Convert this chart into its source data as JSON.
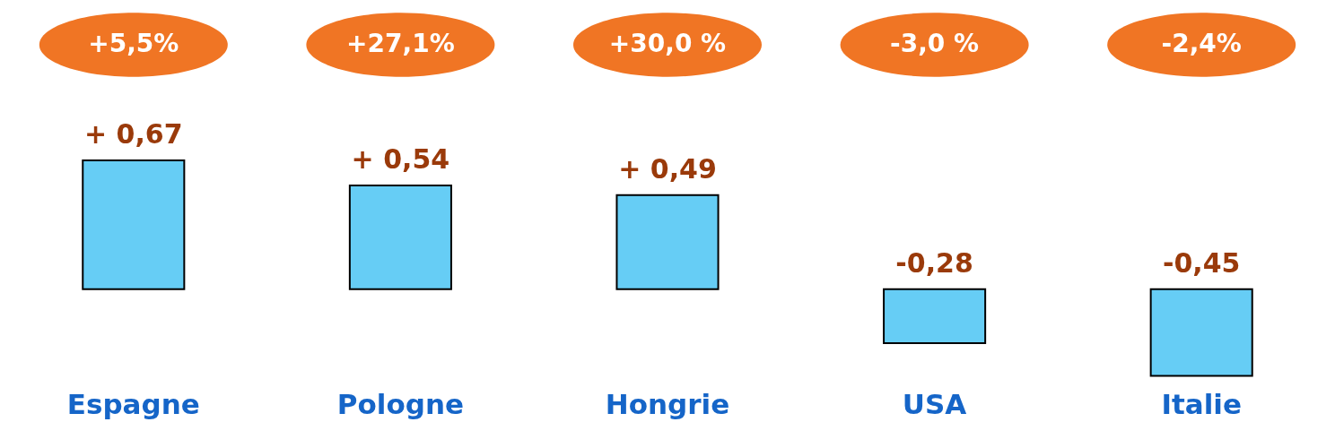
{
  "chart_data": {
    "type": "bar",
    "categories": [
      "Espagne",
      "Pologne",
      "Hongrie",
      "USA",
      "Italie"
    ],
    "values": [
      0.67,
      0.54,
      0.49,
      -0.28,
      -0.45
    ],
    "value_labels": [
      "+ 0,67",
      "+ 0,54",
      "+ 0,49",
      "-0,28",
      "-0,45"
    ],
    "color": "#66cdf5",
    "tick_labels": "x",
    "grid": false,
    "annotations": [
      "+5,5%",
      "+27,1%",
      "+30,0 %",
      "-3,0 %",
      "-2,4%"
    ]
  }
}
